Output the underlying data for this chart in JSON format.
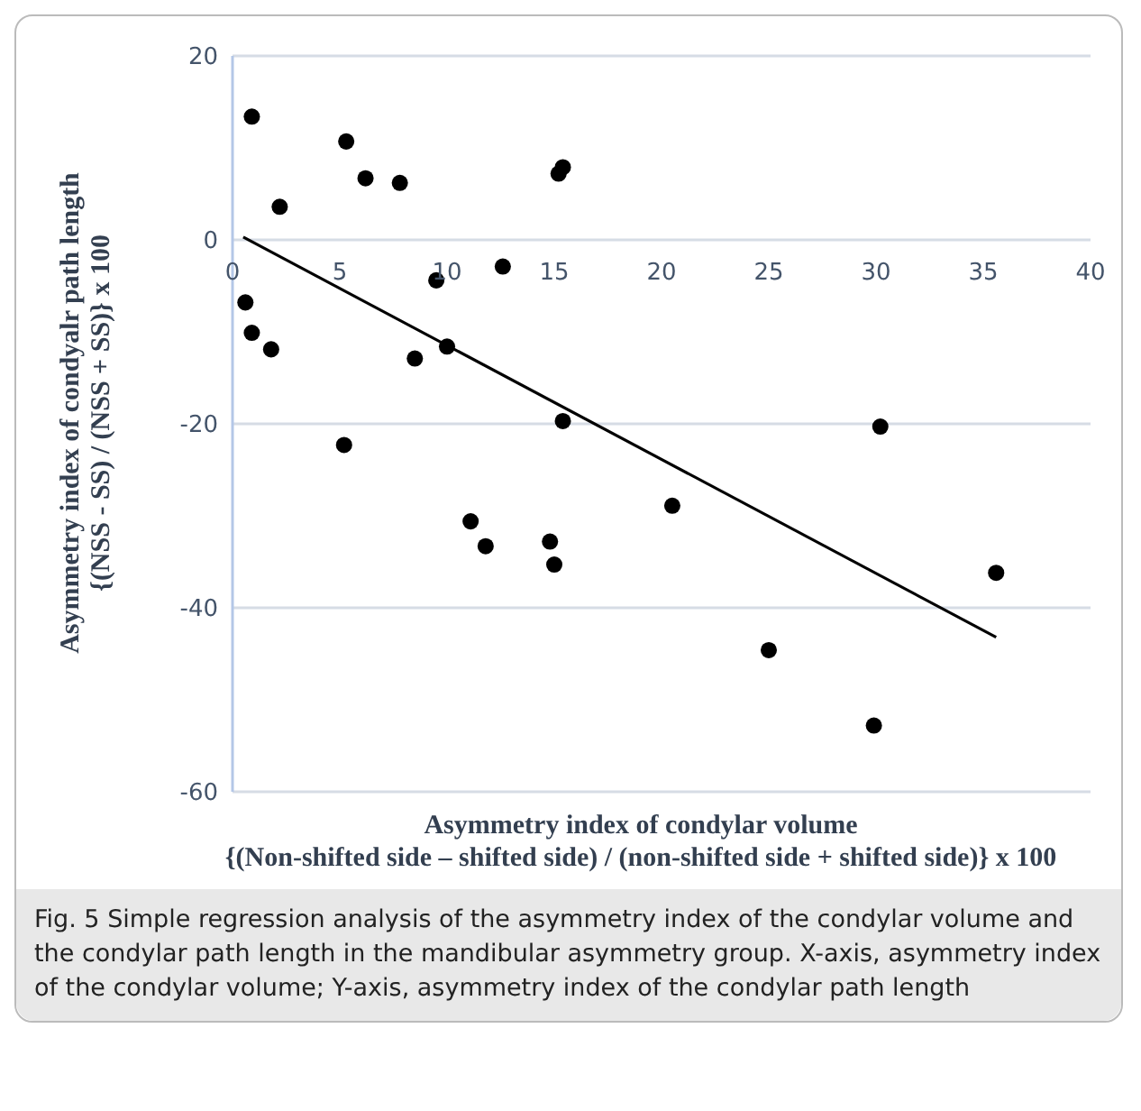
{
  "chart_data": {
    "type": "scatter",
    "xlabel": "Asymmetry index of condylar volume\n{(Non-shifted side – shifted side) / (non-shifted side + shifted side)} x 100",
    "ylabel": "Asymmetry index of condyalr path length\n{(NSS - SS) / (NSS + SS)} x 100",
    "annotations": [
      "Fig. 5 Simple regression analysis of the asymmetry index of the condylar volume and the condylar path length in the mandibular asymmetry group. X-axis, asymmetry index of the condylar volume; Y-axis, asymmetry index of the condylar path length"
    ],
    "xlim": [
      0,
      40
    ],
    "xticks": [
      0,
      5,
      10,
      15,
      20,
      25,
      30,
      35,
      40
    ],
    "ylim": [
      -60,
      20
    ],
    "yticks": [
      -60,
      -40,
      -20,
      0,
      20
    ],
    "grid": "y",
    "series": [
      {
        "type": "scatter",
        "marker": "circle",
        "color": "#000000",
        "x": [
          0.9,
          5.3,
          6.2,
          7.8,
          2.2,
          12.6,
          9.5,
          0.6,
          0.9,
          1.8,
          8.5,
          10.0,
          15.2,
          15.4,
          5.2,
          15.4,
          30.2,
          11.1,
          11.8,
          14.8,
          15.0,
          20.5,
          25.0,
          29.9,
          35.6
        ],
        "values": [
          13.4,
          10.7,
          6.7,
          6.2,
          3.6,
          -2.9,
          -4.4,
          -6.8,
          -10.1,
          -11.9,
          -12.9,
          -11.6,
          7.2,
          7.9,
          -22.3,
          -19.7,
          -20.3,
          -30.6,
          -33.3,
          -32.8,
          -35.3,
          -28.9,
          -44.6,
          -52.8,
          -36.2
        ]
      },
      {
        "type": "line",
        "marker": "none",
        "line_style": "solid",
        "color": "#000000",
        "x": [
          0.5,
          35.6
        ],
        "values": [
          0.3,
          -43.2
        ]
      }
    ]
  }
}
